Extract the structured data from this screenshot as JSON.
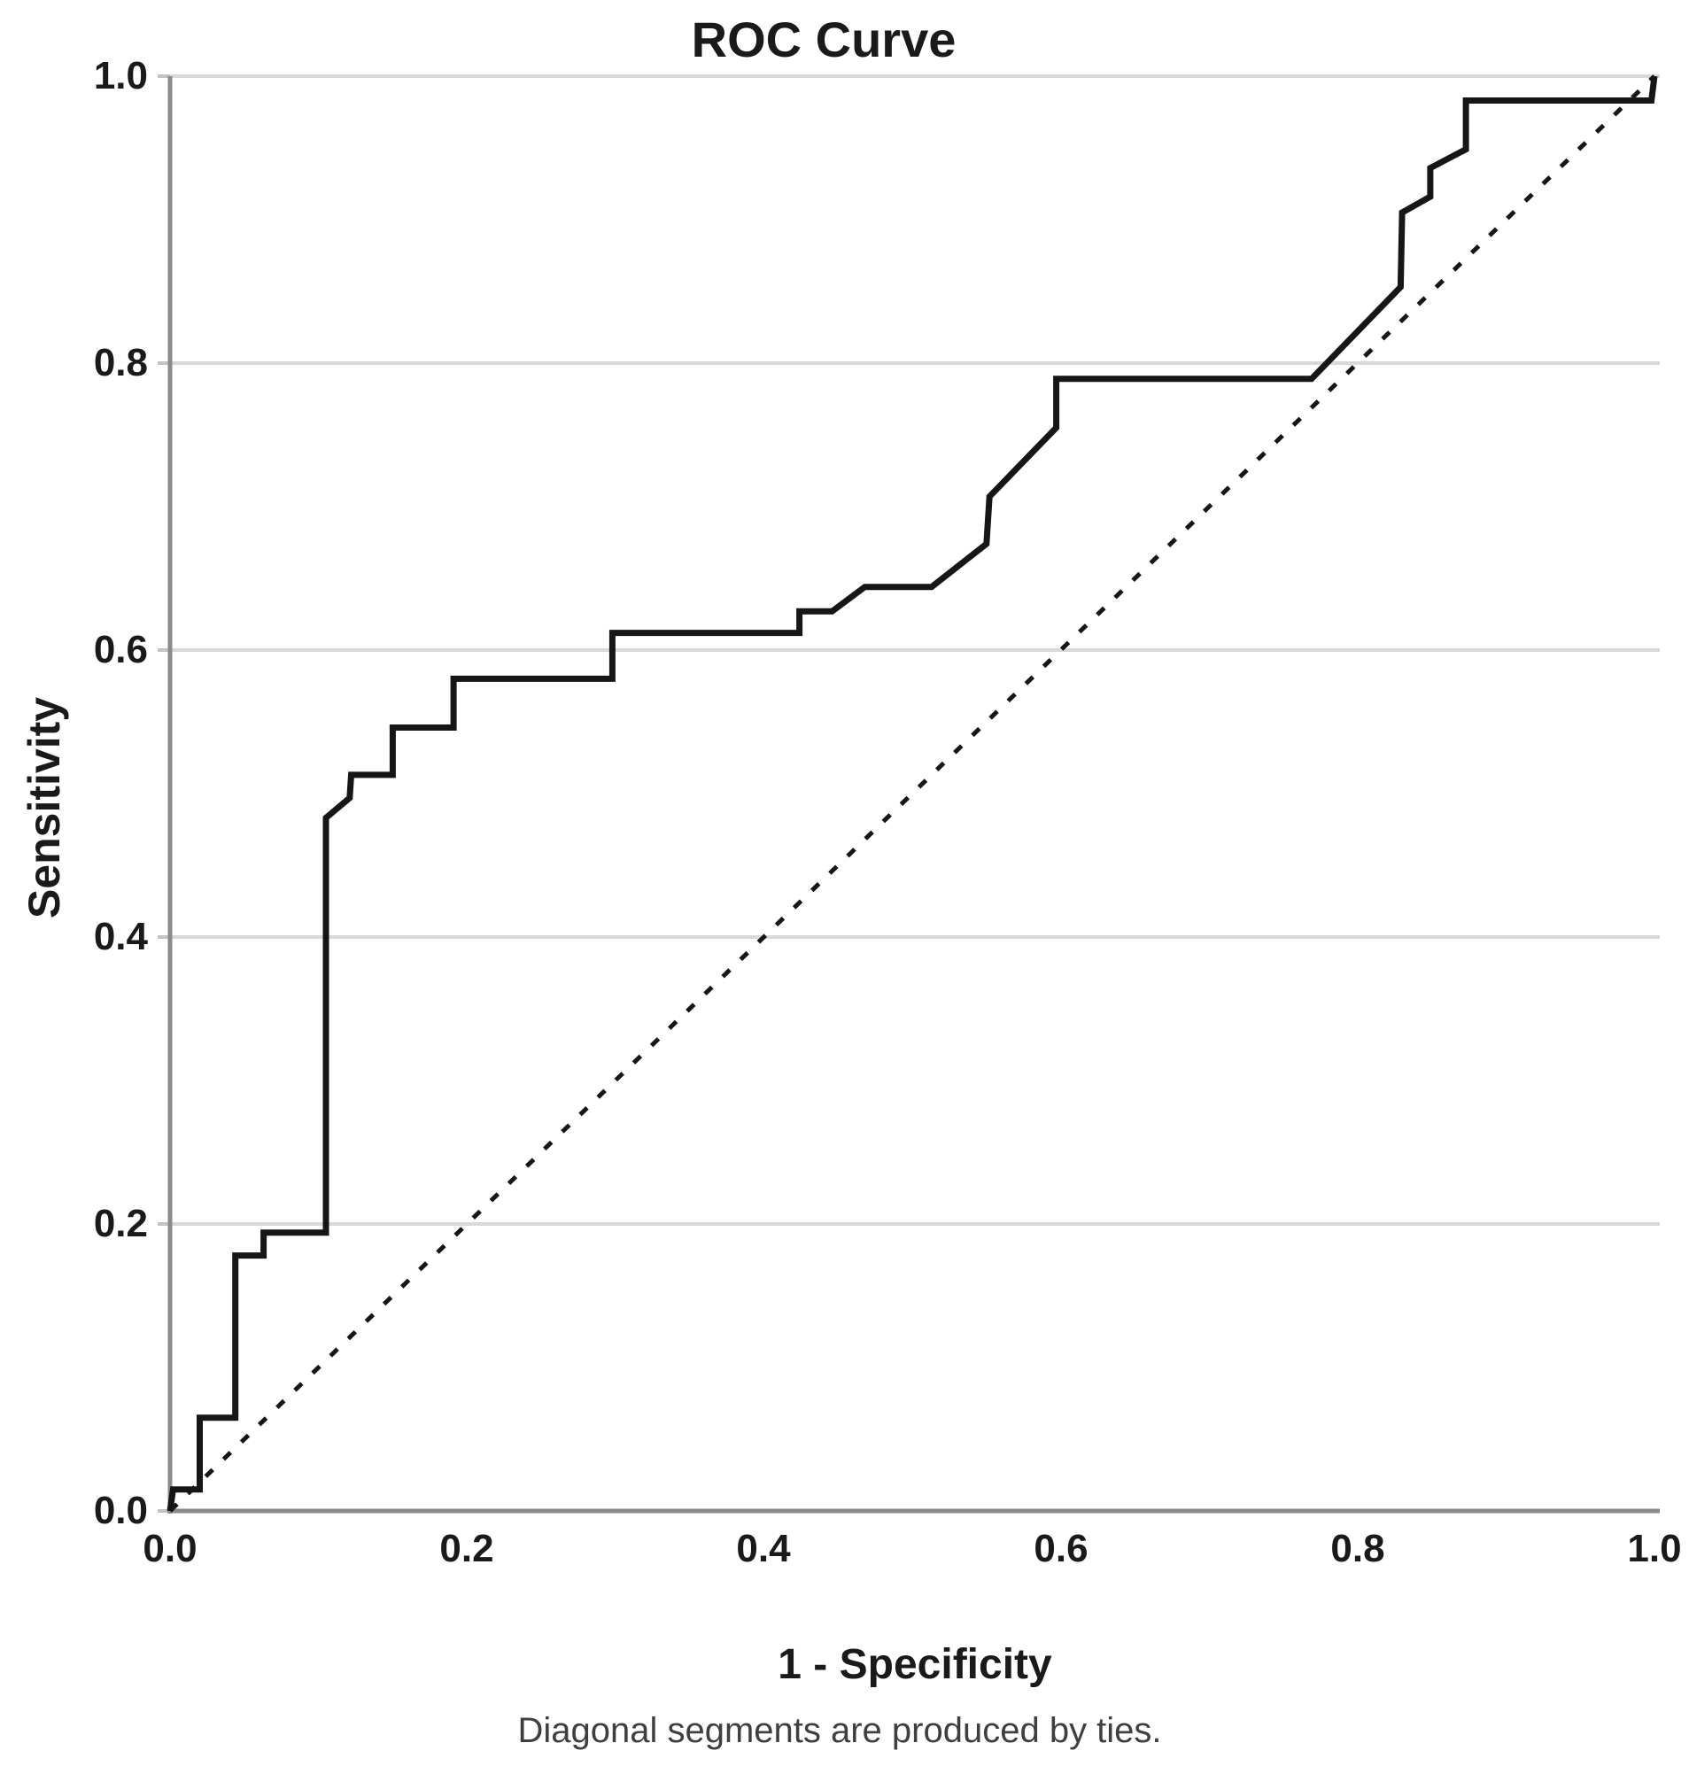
{
  "title": "ROC Curve",
  "x_axis": {
    "label": "1 - Specificity",
    "tick_labels": [
      "0.0",
      "0.2",
      "0.4",
      "0.6",
      "0.8",
      "1.0"
    ]
  },
  "y_axis": {
    "label": "Sensitivity",
    "tick_labels": [
      "0.0",
      "0.2",
      "0.4",
      "0.6",
      "0.8",
      "1.0"
    ]
  },
  "caption": "Diagonal segments are produced by ties.",
  "colors": {
    "curve": "#161616",
    "reference_line": "#161616",
    "gridline": "#d9d9d9",
    "axis": "#8a8a8a",
    "tick_mark": "#c2c2c2",
    "background": "#ffffff"
  },
  "chart_data": {
    "type": "line",
    "title": "ROC Curve",
    "xlabel": "1 - Specificity",
    "ylabel": "Sensitivity",
    "xlim": [
      0.0,
      1.0
    ],
    "ylim": [
      0.0,
      1.0
    ],
    "xticks": [
      0.0,
      0.2,
      0.4,
      0.6,
      0.8,
      1.0
    ],
    "yticks": [
      0.0,
      0.2,
      0.4,
      0.6,
      0.8,
      1.0
    ],
    "grid": "horizontal-only",
    "legend": "none",
    "footnote": "Diagonal segments are produced by ties.",
    "series": [
      {
        "name": "ROC curve (step line with tie diagonals)",
        "style": "solid",
        "points": [
          [
            0.0,
            0.0
          ],
          [
            0.002,
            0.015
          ],
          [
            0.02,
            0.015
          ],
          [
            0.02,
            0.065
          ],
          [
            0.044,
            0.065
          ],
          [
            0.044,
            0.178
          ],
          [
            0.063,
            0.178
          ],
          [
            0.063,
            0.194
          ],
          [
            0.105,
            0.194
          ],
          [
            0.105,
            0.483
          ],
          [
            0.121,
            0.497
          ],
          [
            0.122,
            0.513
          ],
          [
            0.15,
            0.513
          ],
          [
            0.15,
            0.546
          ],
          [
            0.191,
            0.546
          ],
          [
            0.191,
            0.58
          ],
          [
            0.298,
            0.58
          ],
          [
            0.298,
            0.612
          ],
          [
            0.424,
            0.612
          ],
          [
            0.424,
            0.627
          ],
          [
            0.446,
            0.627
          ],
          [
            0.468,
            0.644
          ],
          [
            0.513,
            0.644
          ],
          [
            0.55,
            0.674
          ],
          [
            0.552,
            0.707
          ],
          [
            0.597,
            0.755
          ],
          [
            0.597,
            0.789
          ],
          [
            0.769,
            0.789
          ],
          [
            0.829,
            0.853
          ],
          [
            0.83,
            0.905
          ],
          [
            0.849,
            0.916
          ],
          [
            0.849,
            0.936
          ],
          [
            0.873,
            0.949
          ],
          [
            0.873,
            0.983
          ],
          [
            0.998,
            0.983
          ],
          [
            1.0,
            1.0
          ]
        ]
      },
      {
        "name": "Reference diagonal",
        "style": "dashed",
        "points": [
          [
            0.0,
            0.0
          ],
          [
            1.0,
            1.0
          ]
        ]
      }
    ]
  }
}
